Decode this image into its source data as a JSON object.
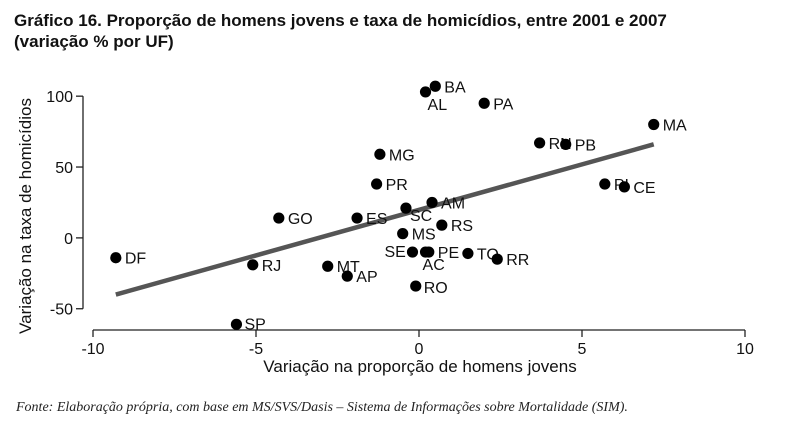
{
  "figure": {
    "title_line1": "Gráfico 16. Proporção de homens jovens e taxa de homicídios, entre 2001 e 2007",
    "title_line2": "(variação % por UF)",
    "source": "Fonte: Elaboração própria, com base em MS/SVS/Dasis – Sistema de Informações sobre Mortalidade (SIM)."
  },
  "chart_data": {
    "type": "scatter",
    "title": "Gráfico 16. Proporção de homens jovens e taxa de homicídios, entre 2001 e 2007 (variação % por UF)",
    "xlabel": "Variação na proporção de homens jovens",
    "ylabel": "Variação na taxa de homicídios",
    "xlim": [
      -10,
      10
    ],
    "ylim": [
      -65,
      110
    ],
    "xticks": [
      -10,
      -5,
      0,
      5,
      10
    ],
    "yticks": [
      -50,
      0,
      50,
      100
    ],
    "grid": false,
    "points": [
      {
        "label": "BA",
        "x": 0.5,
        "y": 107
      },
      {
        "label": "AL",
        "x": 0.2,
        "y": 103
      },
      {
        "label": "PA",
        "x": 2.0,
        "y": 95
      },
      {
        "label": "MA",
        "x": 7.2,
        "y": 80
      },
      {
        "label": "RN",
        "x": 3.7,
        "y": 67
      },
      {
        "label": "PB",
        "x": 4.5,
        "y": 66
      },
      {
        "label": "MG",
        "x": -1.2,
        "y": 59
      },
      {
        "label": "PI",
        "x": 5.7,
        "y": 38
      },
      {
        "label": "CE",
        "x": 6.3,
        "y": 36
      },
      {
        "label": "PR",
        "x": -1.3,
        "y": 38
      },
      {
        "label": "AM",
        "x": 0.4,
        "y": 25
      },
      {
        "label": "SC",
        "x": -0.4,
        "y": 21
      },
      {
        "label": "GO",
        "x": -4.3,
        "y": 14
      },
      {
        "label": "ES",
        "x": -1.9,
        "y": 14
      },
      {
        "label": "RS",
        "x": 0.7,
        "y": 9
      },
      {
        "label": "MS",
        "x": -0.5,
        "y": 3
      },
      {
        "label": "SE",
        "x": -0.2,
        "y": -10
      },
      {
        "label": "PE",
        "x": 0.3,
        "y": -10
      },
      {
        "label": "TO",
        "x": 1.5,
        "y": -11
      },
      {
        "label": "AC",
        "x": 0.2,
        "y": -10
      },
      {
        "label": "RR",
        "x": 2.4,
        "y": -15
      },
      {
        "label": "DF",
        "x": -9.3,
        "y": -14
      },
      {
        "label": "RJ",
        "x": -5.1,
        "y": -19
      },
      {
        "label": "MT",
        "x": -2.8,
        "y": -20
      },
      {
        "label": "AP",
        "x": -2.2,
        "y": -27
      },
      {
        "label": "RO",
        "x": -0.1,
        "y": -34
      },
      {
        "label": "SP",
        "x": -5.6,
        "y": -61
      }
    ],
    "trendline": {
      "x": [
        -9.3,
        7.2
      ],
      "y": [
        -40,
        66
      ]
    }
  }
}
